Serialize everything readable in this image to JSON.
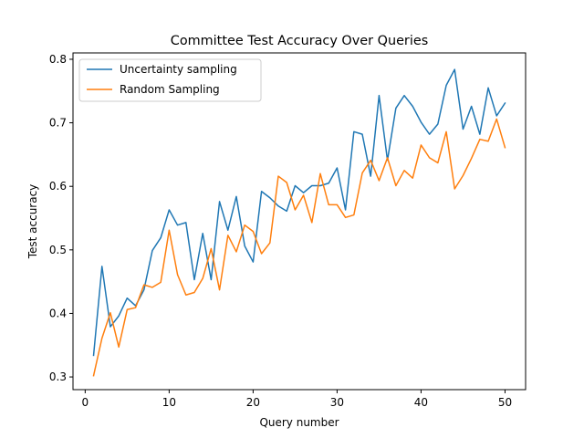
{
  "chart_data": {
    "type": "line",
    "title": "Committee Test Accuracy Over Queries",
    "xlabel": "Query number",
    "ylabel": "Test accuracy",
    "xlim": [
      -1.45,
      52.45
    ],
    "ylim": [
      0.28,
      0.81
    ],
    "xticks": [
      0,
      10,
      20,
      30,
      40,
      50
    ],
    "yticks": [
      0.3,
      0.4,
      0.5,
      0.6,
      0.7,
      0.8
    ],
    "xtick_labels": [
      "0",
      "10",
      "20",
      "30",
      "40",
      "50"
    ],
    "ytick_labels": [
      "0.3",
      "0.4",
      "0.5",
      "0.6",
      "0.7",
      "0.8"
    ],
    "grid": false,
    "legend_position": "top-left",
    "x": [
      1,
      2,
      3,
      4,
      5,
      6,
      7,
      8,
      9,
      10,
      11,
      12,
      13,
      14,
      15,
      16,
      17,
      18,
      19,
      20,
      21,
      22,
      23,
      24,
      25,
      26,
      27,
      28,
      29,
      30,
      31,
      32,
      33,
      34,
      35,
      36,
      37,
      38,
      39,
      40,
      41,
      42,
      43,
      44,
      45,
      46,
      47,
      48,
      49,
      50
    ],
    "series": [
      {
        "name": "Uncertainty sampling",
        "color": "#1f77b4",
        "values": [
          0.334,
          0.474,
          0.379,
          0.396,
          0.424,
          0.412,
          0.437,
          0.499,
          0.519,
          0.563,
          0.539,
          0.543,
          0.453,
          0.526,
          0.453,
          0.576,
          0.531,
          0.584,
          0.506,
          0.481,
          0.592,
          0.582,
          0.569,
          0.561,
          0.601,
          0.59,
          0.601,
          0.601,
          0.605,
          0.629,
          0.563,
          0.686,
          0.682,
          0.616,
          0.743,
          0.641,
          0.723,
          0.743,
          0.726,
          0.701,
          0.682,
          0.698,
          0.759,
          0.784,
          0.69,
          0.726,
          0.682,
          0.755,
          0.711,
          0.731
        ]
      },
      {
        "name": "Random Sampling",
        "color": "#ff7f0e",
        "values": [
          0.302,
          0.361,
          0.401,
          0.347,
          0.406,
          0.409,
          0.445,
          0.441,
          0.449,
          0.531,
          0.461,
          0.429,
          0.433,
          0.455,
          0.502,
          0.437,
          0.523,
          0.497,
          0.539,
          0.529,
          0.494,
          0.511,
          0.616,
          0.606,
          0.563,
          0.586,
          0.543,
          0.62,
          0.571,
          0.571,
          0.551,
          0.555,
          0.621,
          0.641,
          0.609,
          0.645,
          0.601,
          0.625,
          0.613,
          0.665,
          0.645,
          0.637,
          0.686,
          0.596,
          0.617,
          0.644,
          0.674,
          0.671,
          0.706,
          0.661
        ]
      }
    ]
  }
}
